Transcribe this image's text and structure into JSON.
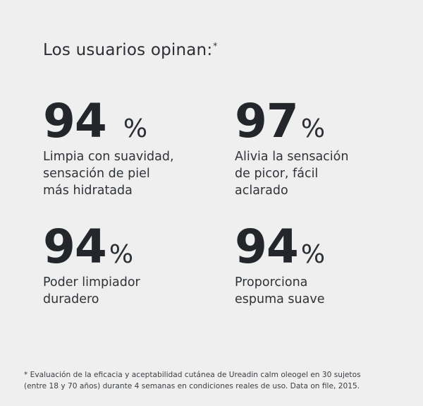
{
  "header": {
    "title": "Los usuarios opinan:",
    "title_mark": "*"
  },
  "stats": [
    {
      "value": "94",
      "unit": "%",
      "lines": [
        "Limpia con suavidad,",
        "sensación de piel",
        "más hidratada"
      ]
    },
    {
      "value": "97",
      "unit": "%",
      "lines": [
        "Alivia la sensación",
        "de picor, fácil",
        "aclarado"
      ]
    },
    {
      "value": "94",
      "unit": "%",
      "lines": [
        "Poder limpiador",
        "duradero"
      ]
    },
    {
      "value": "94",
      "unit": "%",
      "lines": [
        "Proporciona",
        "espuma suave"
      ]
    }
  ],
  "footnote": {
    "lines": [
      "* Evaluación de la eficacia y aceptabilidad cutánea de Ureadin calm oleogel en 30 sujetos",
      "(entre 18 y 70 años) durante 4 semanas en condiciones reales de uso. Data on file, 2015."
    ]
  },
  "colors": {
    "background": "#efefef",
    "text": "#262a2e"
  }
}
